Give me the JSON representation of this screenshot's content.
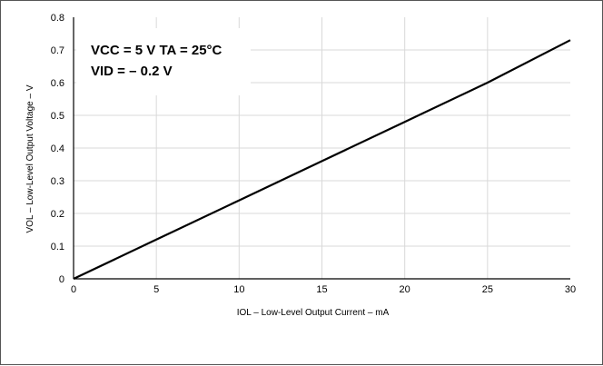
{
  "chart_data": {
    "type": "line",
    "xlabel": "IOL – Low-Level Output Current – mA",
    "ylabel": "VOL – Low-Level Output Voltage – V",
    "xlim": [
      0,
      30
    ],
    "ylim": [
      0,
      0.8
    ],
    "x_ticks": [
      "0",
      "5",
      "10",
      "15",
      "20",
      "25",
      "30"
    ],
    "y_ticks": [
      "0",
      "0.1",
      "0.2",
      "0.3",
      "0.4",
      "0.5",
      "0.6",
      "0.7",
      "0.8"
    ],
    "grid": true,
    "annotations": [
      "VCC = 5 V TA = 25°C",
      "VID = – 0.2 V"
    ],
    "series": [
      {
        "x": [
          0,
          5,
          10,
          15,
          20,
          25,
          30
        ],
        "y": [
          0,
          0.12,
          0.24,
          0.36,
          0.48,
          0.6,
          0.73
        ]
      }
    ],
    "colors": {
      "line": "#000000",
      "grid": "#d9d9d9"
    }
  }
}
